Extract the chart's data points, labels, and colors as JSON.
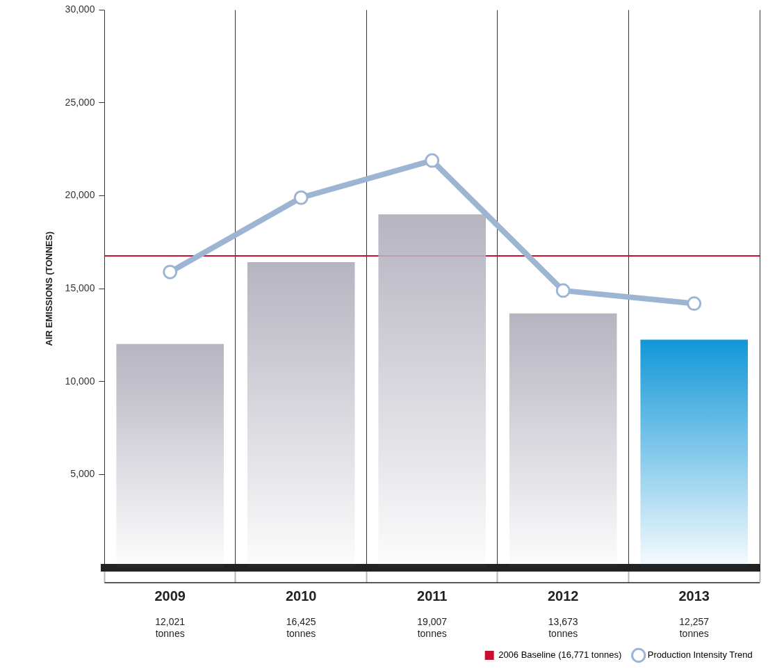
{
  "chart_data": {
    "type": "bar",
    "ylabel": "AIR EMISSIONS (TONNES)",
    "categories": [
      "2009",
      "2010",
      "2011",
      "2012",
      "2013"
    ],
    "series": [
      {
        "colors": [
          "#b5b4c0",
          "#b5b4c0",
          "#b5b4c0",
          "#b5b4c0",
          "#1297d8"
        ],
        "values": [
          12021,
          16425,
          19007,
          13673,
          12257
        ],
        "value_labels": [
          "12,021 tonnes",
          "16,425 tonnes",
          "19,007 tonnes",
          "13,673 tonnes",
          "12,257 tonnes"
        ]
      },
      {
        "type": "line",
        "name": "Production Intensity Trend",
        "color": "#9db5d3",
        "values": [
          15900,
          19900,
          21900,
          14900,
          14200
        ]
      }
    ],
    "ylim": [
      0,
      30000
    ],
    "yticks": [
      {
        "value": 5000,
        "label": "5,000"
      },
      {
        "value": 10000,
        "label": "10,000"
      },
      {
        "value": 15000,
        "label": "15,000"
      },
      {
        "value": 20000,
        "label": "20,000"
      },
      {
        "value": 25000,
        "label": "25,000"
      },
      {
        "value": 30000,
        "label": "30,000"
      }
    ],
    "ref_lines": [
      {
        "axis": "y",
        "value": 16771,
        "label": "2006 Baseline (16,771 tonnes)",
        "color": "#c8102e"
      }
    ],
    "grid": "x",
    "legend": "bottom right",
    "marker": "circle",
    "line_style": "solid"
  }
}
